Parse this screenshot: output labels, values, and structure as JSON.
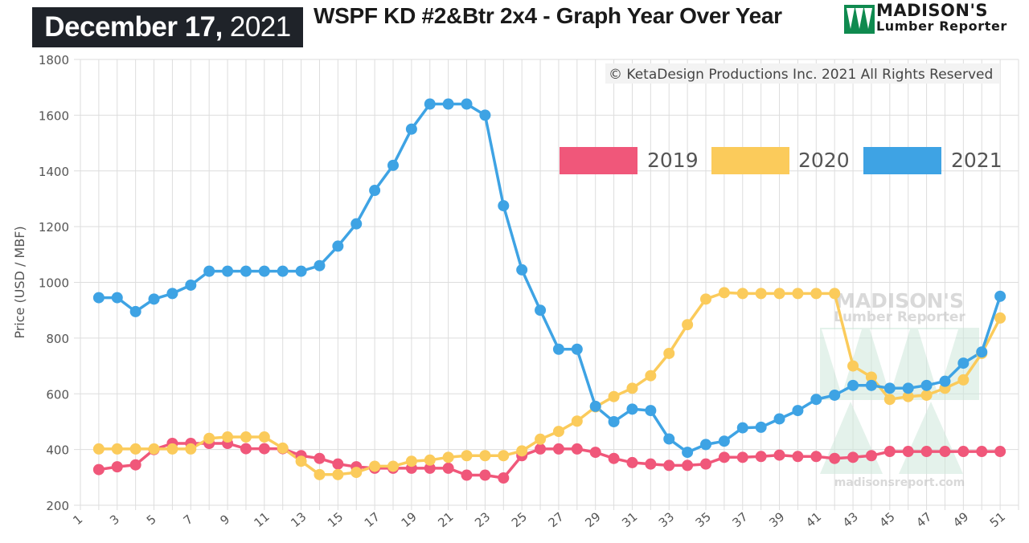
{
  "header": {
    "date_month_day": "December 17,",
    "date_year": "2021",
    "title": "WSPF KD #2&Btr 2x4 - Graph Year Over Year",
    "brand_line1": "MADISON'S",
    "brand_line2": "Lumber Reporter"
  },
  "watermark": {
    "line1": "MADISON'S",
    "line2": "Lumber Reporter",
    "url": "madisonsreport.com"
  },
  "copyright": "© KetaDesign Productions Inc. 2021 All Rights Reserved",
  "colors": {
    "s2019": "#f0577a",
    "s2020": "#fbcb5b",
    "s2021": "#3ea3e4",
    "grid": "#dddddd",
    "dark": "#1f2329",
    "logo_green": "#0f8a4f"
  },
  "chart_data": {
    "type": "line",
    "ylabel": "Price (USD / MBF)",
    "xlabel": "",
    "ylim": [
      200,
      1800
    ],
    "xlim": [
      1,
      52
    ],
    "yticks": [
      200,
      400,
      600,
      800,
      1000,
      1200,
      1400,
      1600,
      1800
    ],
    "xtick_labels": [
      "1",
      "3",
      "5",
      "7",
      "9",
      "11",
      "13",
      "15",
      "17",
      "19",
      "21",
      "23",
      "25",
      "27",
      "29",
      "31",
      "33",
      "35",
      "37",
      "39",
      "41",
      "43",
      "45",
      "47",
      "49",
      "51"
    ],
    "legend_position": "top-right",
    "grid": true,
    "x": [
      2,
      3,
      4,
      5,
      6,
      7,
      8,
      9,
      10,
      11,
      12,
      13,
      14,
      15,
      16,
      17,
      18,
      19,
      20,
      21,
      22,
      23,
      24,
      25,
      26,
      27,
      28,
      29,
      30,
      31,
      32,
      33,
      34,
      35,
      36,
      37,
      38,
      39,
      40,
      41,
      42,
      43,
      44,
      45,
      46,
      47,
      48,
      49,
      50,
      51
    ],
    "series": [
      {
        "name": "2019",
        "color": "#f0577a",
        "values": [
          328,
          338,
          345,
          400,
          422,
          422,
          422,
          422,
          403,
          403,
          403,
          378,
          368,
          348,
          338,
          333,
          333,
          333,
          333,
          333,
          308,
          308,
          298,
          378,
          402,
          402,
          402,
          390,
          368,
          353,
          348,
          343,
          343,
          348,
          372,
          372,
          375,
          380,
          375,
          375,
          368,
          372,
          378,
          393,
          393,
          393,
          393,
          393,
          393,
          393
        ]
      },
      {
        "name": "2020",
        "color": "#fbcb5b",
        "values": [
          402,
          402,
          402,
          402,
          402,
          402,
          440,
          445,
          445,
          445,
          405,
          358,
          310,
          310,
          318,
          340,
          340,
          358,
          362,
          372,
          378,
          378,
          378,
          395,
          437,
          465,
          502,
          553,
          590,
          620,
          665,
          745,
          848,
          940,
          963,
          960,
          960,
          960,
          960,
          960,
          960,
          700,
          660,
          580,
          590,
          595,
          620,
          650,
          745,
          872
        ]
      },
      {
        "name": "2021",
        "color": "#3ea3e4",
        "values": [
          945,
          945,
          895,
          940,
          960,
          990,
          1040,
          1040,
          1040,
          1040,
          1040,
          1040,
          1060,
          1130,
          1210,
          1330,
          1420,
          1550,
          1640,
          1640,
          1640,
          1600,
          1275,
          1045,
          900,
          760,
          760,
          555,
          500,
          545,
          540,
          438,
          390,
          418,
          430,
          478,
          480,
          510,
          540,
          580,
          595,
          630,
          630,
          620,
          620,
          630,
          645,
          710,
          750,
          950
        ]
      }
    ]
  }
}
